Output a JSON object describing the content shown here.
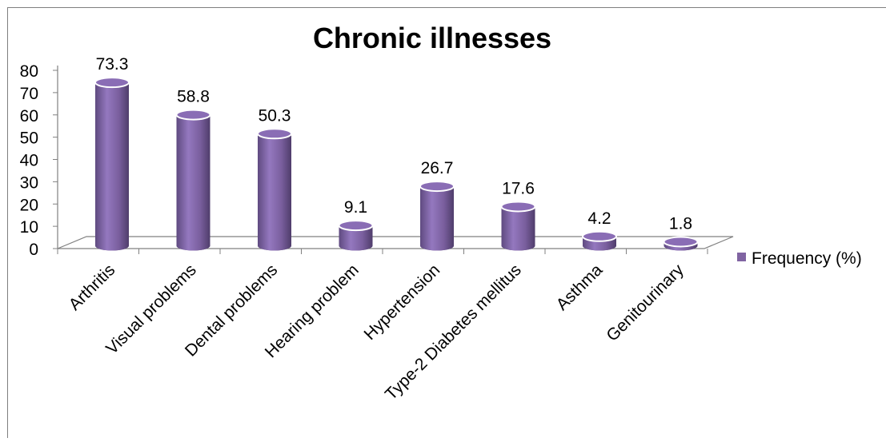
{
  "chart_data": {
    "type": "bar",
    "title": "Chronic illnesses",
    "categories": [
      "Arthritis",
      "Visual problems",
      "Dental problems",
      "Hearing problem",
      "Hypertension",
      "Type-2 Diabetes mellitus",
      "Asthma",
      "Genitourinary"
    ],
    "series": [
      {
        "name": "Frequency (%)",
        "values": [
          73.3,
          58.8,
          50.3,
          9.1,
          26.7,
          17.6,
          4.2,
          1.8
        ],
        "color": "#8064a2"
      }
    ],
    "data_labels": [
      "73.3",
      "58.8",
      "50.3",
      "9.1",
      "26.7",
      "17.6",
      "4.2",
      "1.8"
    ],
    "ylim": [
      0,
      80
    ],
    "yticks": [
      "0",
      "10",
      "20",
      "30",
      "40",
      "50",
      "60",
      "70",
      "80"
    ],
    "ytick_values": [
      0,
      10,
      20,
      30,
      40,
      50,
      60,
      70,
      80
    ],
    "grid": false,
    "legend_placement": "right",
    "bar_shape": "3d-cylinder"
  }
}
